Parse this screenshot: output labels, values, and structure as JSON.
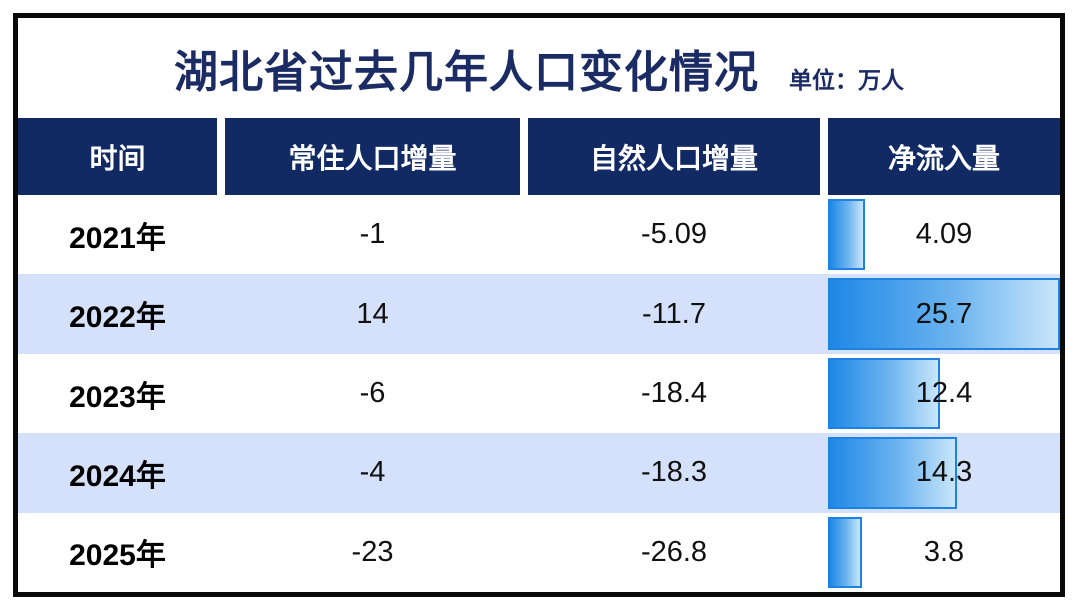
{
  "title": "湖北省过去几年人口变化情况",
  "unit_label": "单位：万人",
  "colors": {
    "title_color": "#1b2b63",
    "header_bg": "#112a64",
    "row_alt_bg": "#d5e1fa",
    "bar_border": "#1e82e2",
    "bar_gradient_start": "#1e88e6",
    "bar_gradient_end": "#c9e6fa",
    "frame_border": "#0a0a0a"
  },
  "table": {
    "columns": [
      "时间",
      "常住人口增量",
      "自然人口增量",
      "净流入量"
    ],
    "rows": [
      {
        "year": "2021年",
        "resident": "-1",
        "natural": "-5.09",
        "net": "4.09",
        "net_value": 4.09
      },
      {
        "year": "2022年",
        "resident": "14",
        "natural": "-11.7",
        "net": "25.7",
        "net_value": 25.7
      },
      {
        "year": "2023年",
        "resident": "-6",
        "natural": "-18.4",
        "net": "12.4",
        "net_value": 12.4
      },
      {
        "year": "2024年",
        "resident": "-4",
        "natural": "-18.3",
        "net": "14.3",
        "net_value": 14.3
      },
      {
        "year": "2025年",
        "resident": "-23",
        "natural": "-26.8",
        "net": "3.8",
        "net_value": 3.8
      }
    ],
    "bar_max": 25.7
  },
  "chart_data": {
    "type": "table",
    "title": "湖北省过去几年人口变化情况",
    "unit": "万人",
    "columns": [
      "时间",
      "常住人口增量",
      "自然人口增量",
      "净流入量"
    ],
    "categories": [
      "2021年",
      "2022年",
      "2023年",
      "2024年",
      "2025年"
    ],
    "series": [
      {
        "name": "常住人口增量",
        "values": [
          -1,
          14,
          -6,
          -4,
          -23
        ]
      },
      {
        "name": "自然人口增量",
        "values": [
          -5.09,
          -11.7,
          -18.4,
          -18.3,
          -26.8
        ]
      },
      {
        "name": "净流入量",
        "values": [
          4.09,
          25.7,
          12.4,
          14.3,
          3.8
        ],
        "visual": "bar",
        "bar_scale_max": 25.7
      }
    ]
  }
}
